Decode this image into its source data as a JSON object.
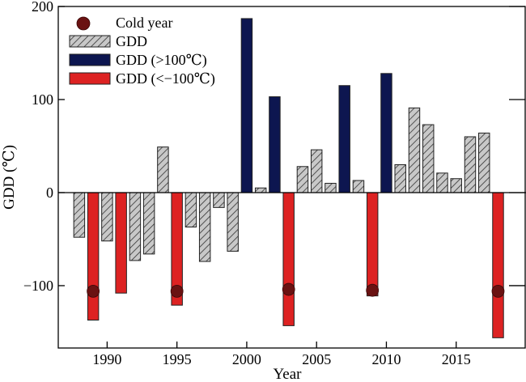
{
  "chart_data": {
    "type": "bar",
    "xlabel": "Year",
    "ylabel": "GDD (℃)",
    "xlim": [
      1986.5,
      2020
    ],
    "ylim": [
      -167,
      200
    ],
    "x_ticks": [
      1990,
      1995,
      2000,
      2005,
      2010,
      2015
    ],
    "y_ticks": [
      -100,
      0,
      100,
      200
    ],
    "y_tick_labels": [
      "−100",
      "0",
      "100",
      "200"
    ],
    "legend_position": "top-left",
    "legend": [
      {
        "key": "cold",
        "label": "Cold year"
      },
      {
        "key": "gdd",
        "label": "GDD"
      },
      {
        "key": "high",
        "label": "GDD (>100℃)"
      },
      {
        "key": "low",
        "label": "GDD (<−100℃)"
      }
    ],
    "colors": {
      "gdd_stroke": "#333333",
      "gdd_fill": "#c8c8c8",
      "high": "#0d1650",
      "low": "#dd2222",
      "cold_marker": "#6a1212"
    },
    "bars": [
      {
        "year": 1988,
        "value": -48,
        "category": "gdd"
      },
      {
        "year": 1989,
        "value": -137,
        "category": "low"
      },
      {
        "year": 1990,
        "value": -52,
        "category": "gdd"
      },
      {
        "year": 1991,
        "value": -108,
        "category": "low"
      },
      {
        "year": 1992,
        "value": -73,
        "category": "gdd"
      },
      {
        "year": 1993,
        "value": -66,
        "category": "gdd"
      },
      {
        "year": 1994,
        "value": 49,
        "category": "gdd"
      },
      {
        "year": 1995,
        "value": -121,
        "category": "low"
      },
      {
        "year": 1996,
        "value": -37,
        "category": "gdd"
      },
      {
        "year": 1997,
        "value": -74,
        "category": "gdd"
      },
      {
        "year": 1998,
        "value": -16,
        "category": "gdd"
      },
      {
        "year": 1999,
        "value": -63,
        "category": "gdd"
      },
      {
        "year": 2000,
        "value": 187,
        "category": "high"
      },
      {
        "year": 2001,
        "value": 5,
        "category": "gdd"
      },
      {
        "year": 2002,
        "value": 103,
        "category": "high"
      },
      {
        "year": 2003,
        "value": -143,
        "category": "low"
      },
      {
        "year": 2004,
        "value": 28,
        "category": "gdd"
      },
      {
        "year": 2005,
        "value": 46,
        "category": "gdd"
      },
      {
        "year": 2006,
        "value": 10,
        "category": "gdd"
      },
      {
        "year": 2007,
        "value": 115,
        "category": "high"
      },
      {
        "year": 2008,
        "value": 13,
        "category": "gdd"
      },
      {
        "year": 2009,
        "value": -111,
        "category": "low"
      },
      {
        "year": 2010,
        "value": 128,
        "category": "high"
      },
      {
        "year": 2011,
        "value": 30,
        "category": "gdd"
      },
      {
        "year": 2012,
        "value": 91,
        "category": "gdd"
      },
      {
        "year": 2013,
        "value": 73,
        "category": "gdd"
      },
      {
        "year": 2014,
        "value": 21,
        "category": "gdd"
      },
      {
        "year": 2015,
        "value": 15,
        "category": "gdd"
      },
      {
        "year": 2016,
        "value": 60,
        "category": "gdd"
      },
      {
        "year": 2017,
        "value": 64,
        "category": "gdd"
      },
      {
        "year": 2018,
        "value": -156,
        "category": "low"
      }
    ],
    "cold_years": [
      {
        "year": 1989,
        "value": -106
      },
      {
        "year": 1995,
        "value": -106
      },
      {
        "year": 2003,
        "value": -104
      },
      {
        "year": 2009,
        "value": -105
      },
      {
        "year": 2018,
        "value": -106
      }
    ]
  }
}
